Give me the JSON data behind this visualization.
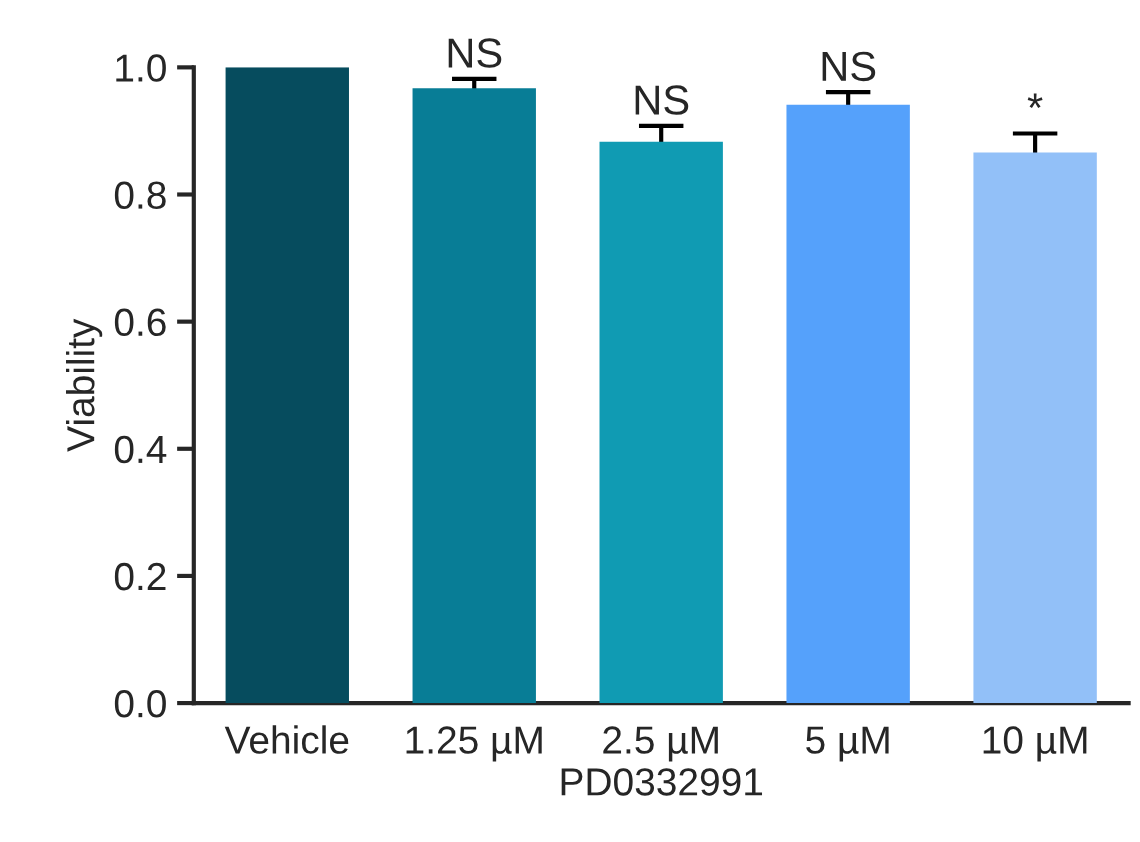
{
  "chart_data": {
    "type": "bar",
    "xlabel": "PD0332991",
    "ylabel": "Viability",
    "categories": [
      "Vehicle",
      "1.25 µM",
      "2.5 µM",
      "5 µM",
      "10 µM"
    ],
    "values": [
      1.0,
      0.967,
      0.883,
      0.941,
      0.866
    ],
    "errors": [
      null,
      0.015,
      0.025,
      0.02,
      0.03
    ],
    "colors": [
      "#064c5e",
      "#087d96",
      "#109bb3",
      "#55a1fb",
      "#92c0f8"
    ],
    "ylim": [
      0,
      1.0
    ],
    "yticks": [
      {
        "value": 0,
        "label": "0.0"
      },
      0.2,
      0.4,
      0.6,
      0.8,
      {
        "value": 1,
        "label": "1.0"
      }
    ],
    "grid": false,
    "annotations": [
      {
        "text": "NS",
        "x": "1.25 µM",
        "y": 0.982
      },
      {
        "text": "NS",
        "x": "2.5 µM",
        "y": 0.908
      },
      {
        "text": "NS",
        "x": "5 µM",
        "y": 0.961
      },
      {
        "text": "*",
        "x": "10 µM",
        "y": 0.896
      }
    ]
  }
}
